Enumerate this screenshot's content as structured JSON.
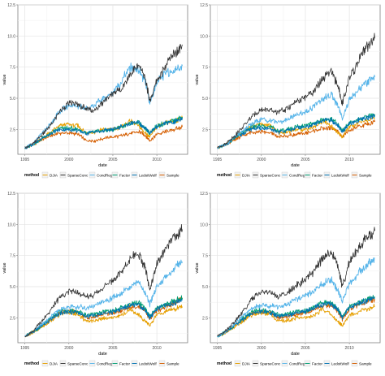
{
  "series_colors": {
    "DJIA": "#E69F00",
    "SparseConc": "#333333",
    "CondReg": "#56B4E9",
    "Factor": "#009E73",
    "LedoitWolf": "#0072B2",
    "Sample": "#D55E00"
  },
  "chart_data": [
    {
      "type": "line",
      "title": "",
      "xlabel": "date",
      "ylabel": "value",
      "xlim": [
        1994.2,
        2013.5
      ],
      "ylim": [
        0.5,
        12.5
      ],
      "x_ticks": [
        "1995",
        "2000",
        "2005",
        "2010"
      ],
      "y_ticks": [
        "2.5",
        "5.0",
        "7.5",
        "10.0",
        "12.5"
      ],
      "grid": true,
      "legend": {
        "position": "bottom",
        "title": "method",
        "entries": [
          "DJIA",
          "SparseConc",
          "CondReg",
          "Factor",
          "LedoitWolf",
          "Sample"
        ]
      },
      "x": [
        1995.0,
        1996.0,
        1997.0,
        1998.0,
        1999.0,
        2000.0,
        2001.0,
        2002.0,
        2003.0,
        2004.0,
        2005.0,
        2006.0,
        2007.0,
        2008.0,
        2008.7,
        2009.2,
        2010.0,
        2011.0,
        2012.0,
        2012.9
      ],
      "series": [
        {
          "name": "DJIA",
          "values": [
            1.0,
            1.3,
            1.8,
            2.3,
            2.8,
            2.9,
            2.8,
            2.2,
            2.3,
            2.5,
            2.5,
            2.7,
            3.2,
            2.7,
            2.2,
            1.9,
            2.7,
            3.0,
            3.2,
            3.4
          ]
        },
        {
          "name": "SparseConc",
          "values": [
            1.0,
            1.4,
            2.1,
            2.9,
            4.0,
            4.6,
            4.5,
            4.2,
            4.0,
            4.8,
            5.4,
            5.8,
            7.0,
            7.6,
            6.5,
            4.8,
            6.4,
            7.6,
            8.6,
            9.3
          ]
        },
        {
          "name": "CondReg",
          "values": [
            1.0,
            1.4,
            2.2,
            3.0,
            4.0,
            4.4,
            4.4,
            4.2,
            4.5,
            5.0,
            5.5,
            6.4,
            7.5,
            7.2,
            6.3,
            4.6,
            6.3,
            7.0,
            7.3,
            7.6
          ]
        },
        {
          "name": "Factor",
          "values": [
            1.0,
            1.3,
            1.8,
            2.2,
            2.6,
            2.6,
            2.5,
            2.2,
            2.3,
            2.4,
            2.5,
            2.7,
            3.0,
            3.0,
            2.6,
            2.2,
            2.8,
            3.0,
            3.2,
            3.5
          ]
        },
        {
          "name": "LedoitWolf",
          "values": [
            1.0,
            1.3,
            1.8,
            2.2,
            2.5,
            2.5,
            2.4,
            2.2,
            2.3,
            2.4,
            2.5,
            2.7,
            3.0,
            3.0,
            2.6,
            2.2,
            2.7,
            3.0,
            3.1,
            3.4
          ]
        },
        {
          "name": "Sample",
          "values": [
            1.0,
            1.3,
            1.7,
            2.0,
            2.2,
            2.2,
            2.1,
            1.6,
            1.6,
            1.8,
            1.9,
            2.0,
            2.2,
            2.3,
            2.0,
            1.6,
            2.1,
            2.3,
            2.5,
            2.7
          ]
        }
      ]
    },
    {
      "type": "line",
      "title": "",
      "xlabel": "date",
      "ylabel": "value",
      "xlim": [
        1994.2,
        2013.5
      ],
      "ylim": [
        0.5,
        12.5
      ],
      "x_ticks": [
        "1995",
        "2000",
        "2005",
        "2010"
      ],
      "y_ticks": [
        "2.5",
        "5.0",
        "7.5",
        "10.0",
        "12.5"
      ],
      "grid": true,
      "legend": {
        "position": "bottom",
        "title": "method",
        "entries": [
          "DJIA",
          "SparseConc",
          "CondReg",
          "Factor",
          "LedoitWolf",
          "Sample"
        ]
      },
      "x": [
        1995.0,
        1996.0,
        1997.0,
        1998.0,
        1999.0,
        2000.0,
        2001.0,
        2002.0,
        2003.0,
        2004.0,
        2005.0,
        2006.0,
        2007.0,
        2008.0,
        2008.7,
        2009.2,
        2010.0,
        2011.0,
        2012.0,
        2012.9
      ],
      "series": [
        {
          "name": "DJIA",
          "values": [
            1.0,
            1.3,
            1.8,
            2.3,
            2.8,
            2.9,
            2.8,
            2.2,
            2.3,
            2.5,
            2.5,
            2.7,
            3.2,
            2.7,
            2.2,
            1.9,
            2.7,
            3.0,
            3.2,
            3.4
          ]
        },
        {
          "name": "SparseConc",
          "values": [
            1.0,
            1.4,
            2.0,
            2.8,
            3.6,
            4.1,
            4.0,
            3.9,
            4.2,
            4.7,
            5.1,
            5.6,
            6.6,
            7.1,
            6.0,
            4.6,
            6.6,
            7.9,
            9.1,
            9.8
          ]
        },
        {
          "name": "CondReg",
          "values": [
            1.0,
            1.3,
            1.9,
            2.4,
            3.0,
            3.3,
            3.2,
            3.1,
            3.3,
            3.7,
            3.9,
            4.4,
            5.0,
            5.2,
            4.4,
            3.4,
            4.9,
            5.7,
            6.3,
            6.7
          ]
        },
        {
          "name": "Factor",
          "values": [
            1.0,
            1.3,
            1.8,
            2.3,
            2.7,
            2.8,
            2.7,
            2.4,
            2.5,
            2.7,
            2.8,
            3.0,
            3.3,
            3.3,
            2.9,
            2.4,
            3.0,
            3.3,
            3.5,
            3.7
          ]
        },
        {
          "name": "LedoitWolf",
          "values": [
            1.0,
            1.3,
            1.8,
            2.2,
            2.6,
            2.6,
            2.5,
            2.3,
            2.4,
            2.6,
            2.7,
            2.9,
            3.2,
            3.2,
            2.8,
            2.3,
            2.9,
            3.2,
            3.4,
            3.6
          ]
        },
        {
          "name": "Sample",
          "values": [
            1.0,
            1.3,
            1.7,
            2.0,
            2.3,
            2.3,
            2.2,
            1.9,
            2.0,
            2.1,
            2.2,
            2.4,
            2.6,
            2.6,
            2.3,
            1.9,
            2.4,
            2.7,
            2.9,
            3.1
          ]
        }
      ]
    },
    {
      "type": "line",
      "title": "",
      "xlabel": "date",
      "ylabel": "value",
      "xlim": [
        1994.2,
        2013.5
      ],
      "ylim": [
        0.5,
        12.5
      ],
      "x_ticks": [
        "1995",
        "2000",
        "2005",
        "2010"
      ],
      "y_ticks": [
        "2.5",
        "5.0",
        "7.5",
        "10.0",
        "12.5"
      ],
      "grid": true,
      "legend": {
        "position": "bottom",
        "title": "method",
        "entries": [
          "DJIA",
          "SparseConc",
          "CondReg",
          "Factor",
          "LedoitWolf",
          "Sample"
        ]
      },
      "x": [
        1995.0,
        1996.0,
        1997.0,
        1998.0,
        1999.0,
        2000.0,
        2001.0,
        2002.0,
        2003.0,
        2004.0,
        2005.0,
        2006.0,
        2007.0,
        2008.0,
        2008.7,
        2009.2,
        2010.0,
        2011.0,
        2012.0,
        2012.9
      ],
      "series": [
        {
          "name": "DJIA",
          "values": [
            1.0,
            1.3,
            1.8,
            2.3,
            2.8,
            2.9,
            2.8,
            2.2,
            2.3,
            2.5,
            2.5,
            2.7,
            3.2,
            2.7,
            2.2,
            1.9,
            2.7,
            3.0,
            3.2,
            3.4
          ]
        },
        {
          "name": "SparseConc",
          "values": [
            1.0,
            1.5,
            2.3,
            3.2,
            4.2,
            4.6,
            4.6,
            4.2,
            4.4,
            5.0,
            5.5,
            6.2,
            7.3,
            7.6,
            6.4,
            4.8,
            6.8,
            8.0,
            9.0,
            9.6
          ]
        },
        {
          "name": "CondReg",
          "values": [
            1.0,
            1.4,
            2.0,
            2.6,
            3.2,
            3.4,
            3.4,
            3.3,
            3.5,
            3.8,
            4.1,
            4.5,
            5.1,
            5.3,
            4.5,
            3.6,
            5.0,
            5.8,
            6.5,
            7.0
          ]
        },
        {
          "name": "Factor",
          "values": [
            1.0,
            1.4,
            1.9,
            2.5,
            3.0,
            3.1,
            3.0,
            2.7,
            2.8,
            3.0,
            3.1,
            3.3,
            3.6,
            3.7,
            3.2,
            2.6,
            3.3,
            3.6,
            3.9,
            4.1
          ]
        },
        {
          "name": "LedoitWolf",
          "values": [
            1.0,
            1.4,
            1.9,
            2.4,
            2.9,
            3.0,
            2.9,
            2.6,
            2.7,
            2.9,
            3.0,
            3.2,
            3.5,
            3.5,
            3.1,
            2.5,
            3.2,
            3.5,
            3.7,
            3.9
          ]
        },
        {
          "name": "Sample",
          "values": [
            1.0,
            1.4,
            1.9,
            2.4,
            2.9,
            3.0,
            2.9,
            2.5,
            2.6,
            2.8,
            2.9,
            3.1,
            3.4,
            3.4,
            3.0,
            2.4,
            3.1,
            3.4,
            3.7,
            4.0
          ]
        }
      ]
    },
    {
      "type": "line",
      "title": "",
      "xlabel": "date",
      "ylabel": "value",
      "xlim": [
        1994.2,
        2013.5
      ],
      "ylim": [
        0.5,
        12.5
      ],
      "x_ticks": [
        "1995",
        "2000",
        "2005",
        "2010"
      ],
      "y_ticks": [
        "2.5",
        "5.0",
        "7.5",
        "10.0",
        "12.5"
      ],
      "grid": true,
      "legend": {
        "position": "bottom",
        "title": "method",
        "entries": [
          "DJIA",
          "SparseConc",
          "CondReg",
          "Factor",
          "LedoitWolf",
          "Sample"
        ]
      },
      "x": [
        1995.0,
        1996.0,
        1997.0,
        1998.0,
        1999.0,
        2000.0,
        2001.0,
        2002.0,
        2003.0,
        2004.0,
        2005.0,
        2006.0,
        2007.0,
        2008.0,
        2008.7,
        2009.2,
        2010.0,
        2011.0,
        2012.0,
        2012.9
      ],
      "series": [
        {
          "name": "DJIA",
          "values": [
            1.0,
            1.3,
            1.8,
            2.3,
            2.8,
            2.9,
            2.8,
            2.2,
            2.3,
            2.5,
            2.5,
            2.7,
            3.2,
            2.7,
            2.2,
            1.9,
            2.7,
            3.0,
            3.2,
            3.4
          ]
        },
        {
          "name": "SparseConc",
          "values": [
            1.0,
            1.5,
            2.2,
            3.1,
            4.1,
            4.6,
            4.5,
            4.2,
            4.5,
            5.1,
            5.6,
            6.3,
            7.3,
            7.7,
            6.6,
            5.0,
            6.9,
            8.1,
            9.0,
            9.5
          ]
        },
        {
          "name": "CondReg",
          "values": [
            1.0,
            1.4,
            2.0,
            2.7,
            3.3,
            3.5,
            3.5,
            3.4,
            3.6,
            4.0,
            4.3,
            4.7,
            5.3,
            5.5,
            4.7,
            3.8,
            5.3,
            6.1,
            6.8,
            7.3
          ]
        },
        {
          "name": "Factor",
          "values": [
            1.0,
            1.4,
            1.9,
            2.5,
            3.0,
            3.1,
            3.0,
            2.7,
            2.8,
            3.0,
            3.1,
            3.4,
            3.7,
            3.7,
            3.2,
            2.6,
            3.4,
            3.7,
            4.0,
            4.2
          ]
        },
        {
          "name": "LedoitWolf",
          "values": [
            1.0,
            1.4,
            1.9,
            2.4,
            2.9,
            3.0,
            2.9,
            2.6,
            2.7,
            2.9,
            3.0,
            3.3,
            3.6,
            3.6,
            3.1,
            2.5,
            3.3,
            3.6,
            3.9,
            4.1
          ]
        },
        {
          "name": "Sample",
          "values": [
            1.0,
            1.4,
            1.9,
            2.4,
            2.9,
            3.0,
            2.9,
            2.5,
            2.6,
            2.8,
            2.9,
            3.2,
            3.5,
            3.5,
            3.0,
            2.4,
            3.2,
            3.5,
            3.8,
            4.0
          ]
        }
      ]
    }
  ]
}
